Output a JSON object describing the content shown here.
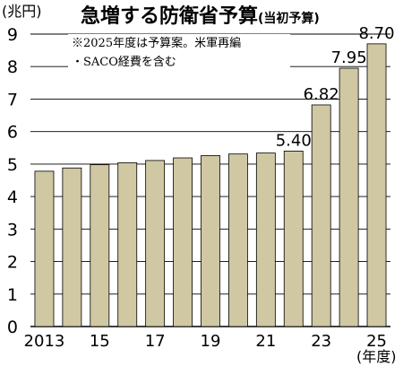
{
  "chart_data": {
    "type": "bar",
    "title": "急増する防衛省予算",
    "subtitle": "(当初予算)",
    "ylabel": "(兆円)",
    "xlabel": "(年度)",
    "notes": [
      "※2025年度は予算案。米軍再編",
      "・SACO経費を含む"
    ],
    "ylim": [
      0,
      9
    ],
    "yticks": [
      0,
      1,
      2,
      3,
      4,
      5,
      6,
      7,
      8,
      9
    ],
    "grid": true,
    "categories": [
      2013,
      2014,
      2015,
      2016,
      2017,
      2018,
      2019,
      2020,
      2021,
      2022,
      2023,
      2024,
      2025
    ],
    "values": [
      4.78,
      4.88,
      4.98,
      5.04,
      5.11,
      5.19,
      5.26,
      5.31,
      5.34,
      5.4,
      6.82,
      7.95,
      8.7
    ],
    "xtick_labels": [
      "2013",
      "",
      "15",
      "",
      "17",
      "",
      "19",
      "",
      "21",
      "",
      "23",
      "",
      "25"
    ],
    "data_labels": [
      "",
      "",
      "",
      "",
      "",
      "",
      "",
      "",
      "",
      "5.40",
      "6.82",
      "7.95",
      "8.70"
    ],
    "bar_color": "#cfc8a3",
    "bar_edge_color": "#000000",
    "grid_color": "#000000"
  }
}
